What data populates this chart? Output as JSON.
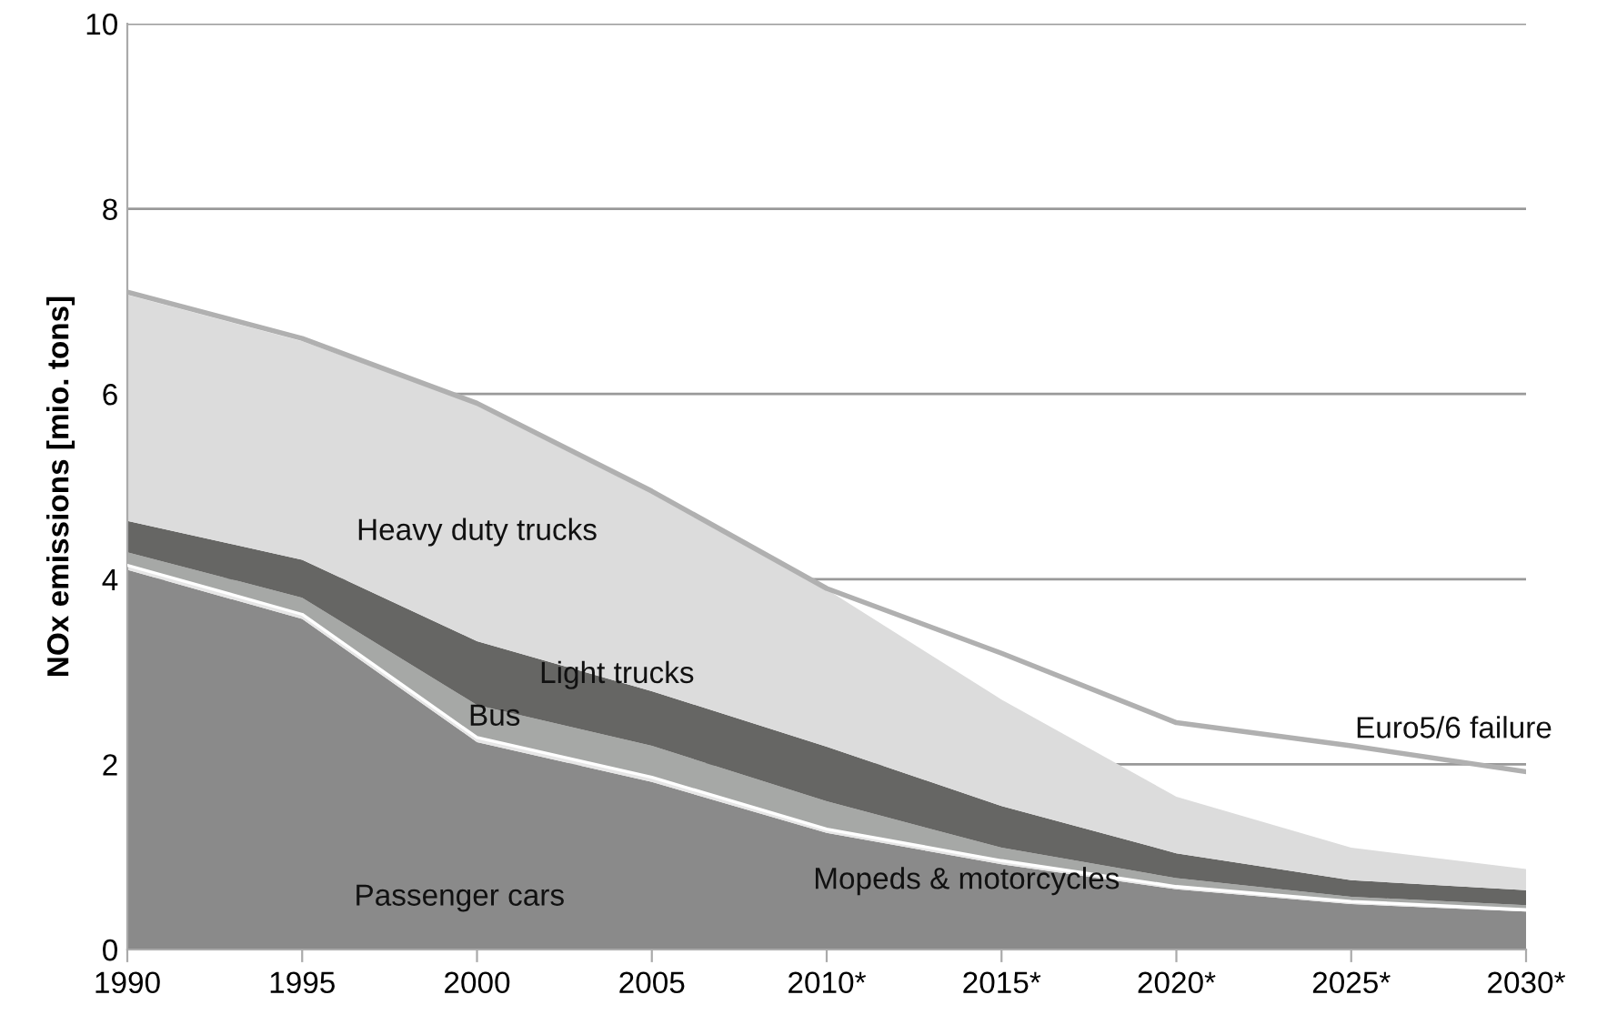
{
  "chart_data": {
    "type": "area",
    "stacked": true,
    "ylabel": "NOx emissions [mio. tons]",
    "categories": [
      "1990",
      "1995",
      "2000",
      "2005",
      "2010*",
      "2015*",
      "2020*",
      "2025*",
      "2030*"
    ],
    "ylim": [
      0,
      10
    ],
    "yticks": [
      0,
      2,
      4,
      6,
      8,
      10
    ],
    "grid": "y",
    "legend": false,
    "series": [
      {
        "name": "Passenger cars",
        "color": "#8a8a8a",
        "values": [
          4.1,
          3.57,
          2.24,
          1.81,
          1.26,
          0.92,
          0.65,
          0.49,
          0.41
        ]
      },
      {
        "name": "Mopeds & motorcycles",
        "color": "#e6e6e6",
        "values": [
          0.05,
          0.05,
          0.05,
          0.05,
          0.04,
          0.04,
          0.03,
          0.03,
          0.02
        ]
      },
      {
        "name": "Bus",
        "color": "#a6a8a6",
        "values": [
          0.14,
          0.18,
          0.35,
          0.34,
          0.3,
          0.14,
          0.09,
          0.05,
          0.05
        ]
      },
      {
        "name": "Light trucks",
        "color": "#666664",
        "values": [
          0.34,
          0.41,
          0.69,
          0.59,
          0.59,
          0.45,
          0.27,
          0.18,
          0.16
        ]
      },
      {
        "name": "Heavy duty trucks",
        "color": "#dcdcdc",
        "values": [
          2.44,
          2.36,
          2.56,
          2.16,
          1.7,
          1.15,
          0.61,
          0.35,
          0.23
        ]
      },
      {
        "name": "Euro5/6 failure",
        "type": "line",
        "color": "#b0b0b0",
        "values": [
          7.1,
          6.6,
          5.9,
          4.95,
          3.9,
          3.2,
          2.45,
          2.2,
          1.92
        ]
      }
    ]
  }
}
